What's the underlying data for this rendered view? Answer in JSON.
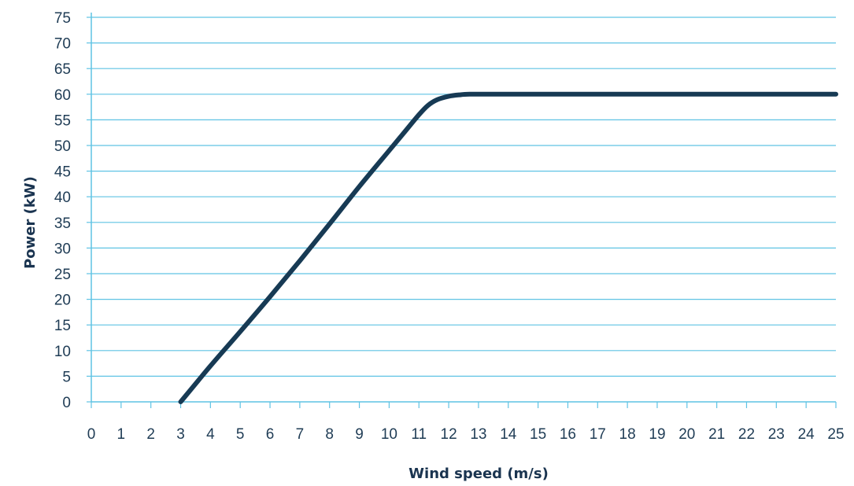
{
  "chart_data": {
    "type": "line",
    "title": "",
    "xlabel": "Wind speed (m/s)",
    "ylabel": "Power (kW)",
    "xlim": [
      0,
      25
    ],
    "ylim": [
      0,
      75
    ],
    "x_ticks": [
      0,
      1,
      2,
      3,
      4,
      5,
      6,
      7,
      8,
      9,
      10,
      11,
      12,
      13,
      14,
      15,
      16,
      17,
      18,
      19,
      20,
      21,
      22,
      23,
      24,
      25
    ],
    "y_ticks": [
      0,
      5,
      10,
      15,
      20,
      25,
      30,
      35,
      40,
      45,
      50,
      55,
      60,
      65,
      70,
      75
    ],
    "grid": "horizontal",
    "legend": "none",
    "colors": {
      "line": "#173a54",
      "grid": "#5fc3e4",
      "axis": "#5fc3e4",
      "text": "#1f3c55"
    },
    "series": [
      {
        "x": [
          3,
          4,
          5,
          6,
          7,
          8,
          9,
          10,
          10.5,
          11,
          11.3,
          11.6,
          12,
          12.4,
          12.7,
          13,
          14,
          15,
          16,
          17,
          18,
          19,
          20,
          21,
          22,
          23,
          24,
          25
        ],
        "y": [
          0,
          7,
          13.7,
          20.5,
          27.5,
          34.7,
          42,
          49,
          52.5,
          56,
          57.8,
          58.9,
          59.6,
          59.9,
          60,
          60,
          60,
          60,
          60,
          60,
          60,
          60,
          60,
          60,
          60,
          60,
          60,
          60
        ]
      }
    ]
  }
}
